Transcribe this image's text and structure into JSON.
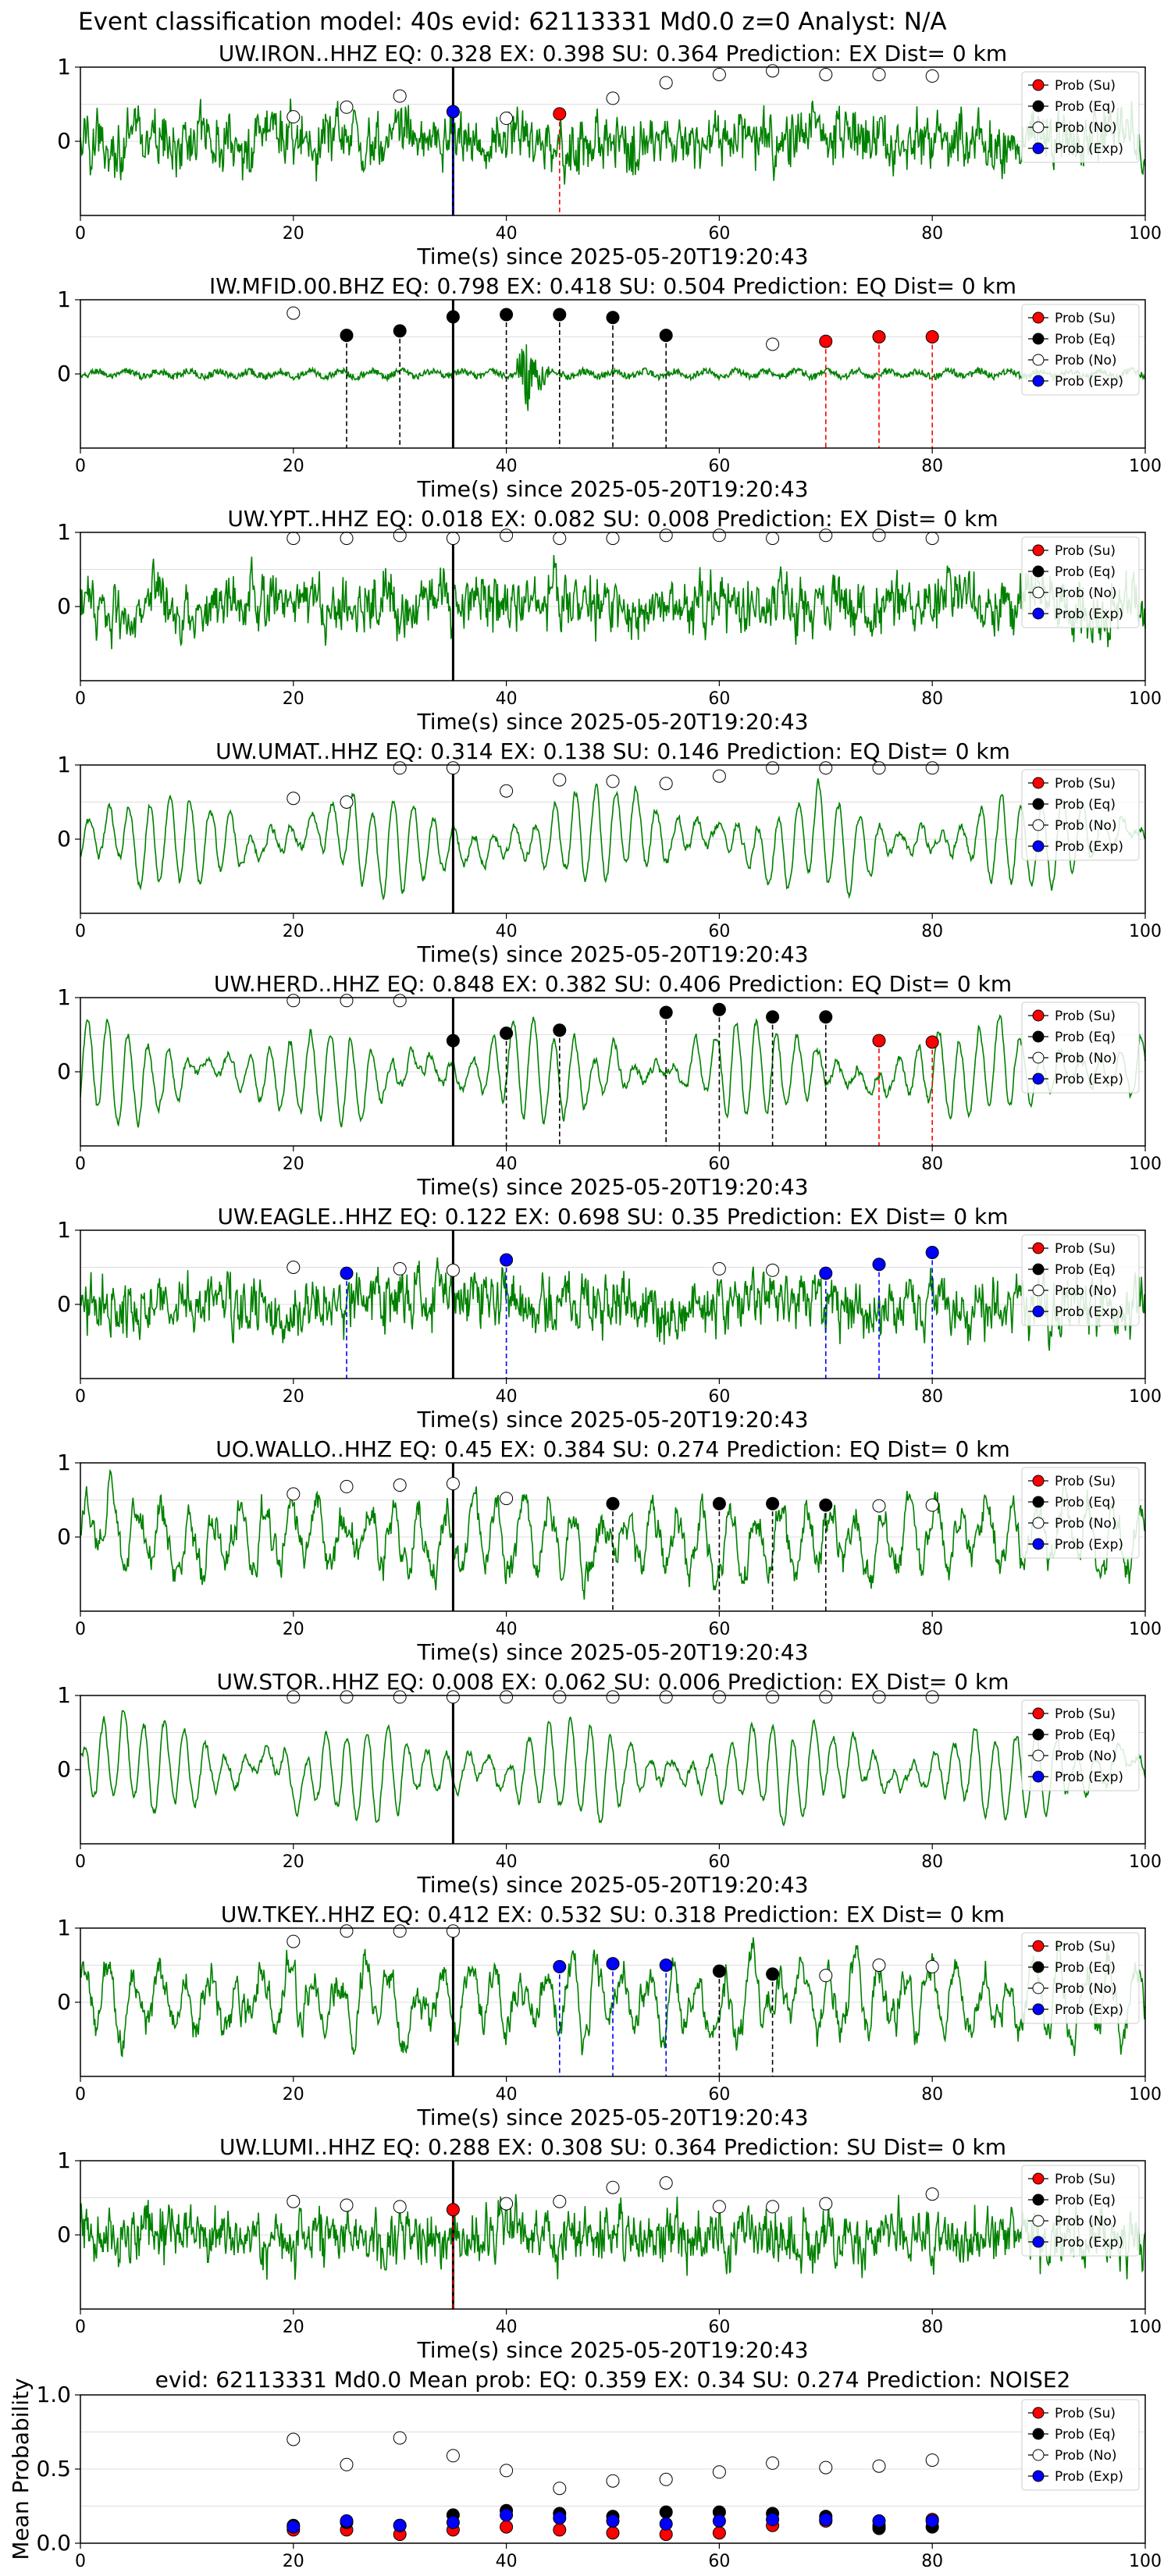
{
  "figure": {
    "suptitle": "Event classification model: 40s evid: 62113331 Md0.0 z=0 Analyst: N/A",
    "colors": {
      "waveform": "#008000",
      "su": "#ff0000",
      "eq": "#000000",
      "no": "#ffffff",
      "exp": "#0000ff",
      "pick": "#000000"
    },
    "legend_labels": [
      "Prob (Su)",
      "Prob (Eq)",
      "Prob (No)",
      "Prob (Exp)"
    ],
    "x_ticks": [
      0,
      20,
      40,
      60,
      80,
      100
    ]
  },
  "chart_data": [
    {
      "type": "line",
      "title": "UW.IRON..HHZ   EQ: 0.328  EX: 0.398  SU: 0.364   Prediction: EX    Dist= 0 km",
      "xlabel": "Time(s) since 2025-05-20T19:20:43",
      "xlim": [
        0,
        100
      ],
      "ylim": [
        -1,
        1
      ],
      "yticks": [
        0,
        1
      ],
      "pick_time": 35,
      "legend": "top-right",
      "prob_markers": [
        {
          "x": 20,
          "y": 0.33,
          "class": "no"
        },
        {
          "x": 25,
          "y": 0.46,
          "class": "no"
        },
        {
          "x": 30,
          "y": 0.61,
          "class": "no"
        },
        {
          "x": 35,
          "y": 0.4,
          "class": "exp"
        },
        {
          "x": 40,
          "y": 0.31,
          "class": "no"
        },
        {
          "x": 45,
          "y": 0.37,
          "class": "su"
        },
        {
          "x": 50,
          "y": 0.58,
          "class": "no"
        },
        {
          "x": 55,
          "y": 0.79,
          "class": "no"
        },
        {
          "x": 60,
          "y": 0.9,
          "class": "no"
        },
        {
          "x": 65,
          "y": 0.95,
          "class": "no"
        },
        {
          "x": 70,
          "y": 0.9,
          "class": "no"
        },
        {
          "x": 75,
          "y": 0.9,
          "class": "no"
        },
        {
          "x": 80,
          "y": 0.88,
          "class": "no"
        }
      ]
    },
    {
      "type": "line",
      "title": "IW.MFID.00.BHZ   EQ: 0.798  EX: 0.418  SU: 0.504   Prediction: EQ    Dist= 0 km",
      "xlabel": "Time(s) since 2025-05-20T19:20:43",
      "xlim": [
        0,
        100
      ],
      "ylim": [
        -1,
        1
      ],
      "yticks": [
        0,
        1
      ],
      "pick_time": 35,
      "legend": "top-right",
      "prob_markers": [
        {
          "x": 20,
          "y": 0.82,
          "class": "no"
        },
        {
          "x": 25,
          "y": 0.52,
          "class": "eq"
        },
        {
          "x": 30,
          "y": 0.58,
          "class": "eq"
        },
        {
          "x": 35,
          "y": 0.77,
          "class": "eq"
        },
        {
          "x": 40,
          "y": 0.8,
          "class": "eq"
        },
        {
          "x": 45,
          "y": 0.8,
          "class": "eq"
        },
        {
          "x": 50,
          "y": 0.76,
          "class": "eq"
        },
        {
          "x": 55,
          "y": 0.52,
          "class": "eq"
        },
        {
          "x": 65,
          "y": 0.4,
          "class": "no"
        },
        {
          "x": 70,
          "y": 0.44,
          "class": "su"
        },
        {
          "x": 75,
          "y": 0.5,
          "class": "su"
        },
        {
          "x": 80,
          "y": 0.5,
          "class": "su"
        }
      ]
    },
    {
      "type": "line",
      "title": "UW.YPT..HHZ   EQ: 0.018  EX: 0.082  SU: 0.008   Prediction: EX    Dist= 0 km",
      "xlabel": "Time(s) since 2025-05-20T19:20:43",
      "xlim": [
        0,
        100
      ],
      "ylim": [
        -1,
        1
      ],
      "yticks": [
        0,
        1
      ],
      "pick_time": 35,
      "legend": "top-right",
      "prob_markers": [
        {
          "x": 20,
          "y": 0.92,
          "class": "no"
        },
        {
          "x": 25,
          "y": 0.92,
          "class": "no"
        },
        {
          "x": 30,
          "y": 0.96,
          "class": "no"
        },
        {
          "x": 35,
          "y": 0.92,
          "class": "no"
        },
        {
          "x": 40,
          "y": 0.96,
          "class": "no"
        },
        {
          "x": 45,
          "y": 0.92,
          "class": "no"
        },
        {
          "x": 50,
          "y": 0.92,
          "class": "no"
        },
        {
          "x": 55,
          "y": 0.96,
          "class": "no"
        },
        {
          "x": 60,
          "y": 0.96,
          "class": "no"
        },
        {
          "x": 65,
          "y": 0.92,
          "class": "no"
        },
        {
          "x": 70,
          "y": 0.96,
          "class": "no"
        },
        {
          "x": 75,
          "y": 0.96,
          "class": "no"
        },
        {
          "x": 80,
          "y": 0.92,
          "class": "no"
        }
      ]
    },
    {
      "type": "line",
      "title": "UW.UMAT..HHZ   EQ: 0.314  EX: 0.138  SU: 0.146   Prediction: EQ    Dist= 0 km",
      "xlabel": "Time(s) since 2025-05-20T19:20:43",
      "xlim": [
        0,
        100
      ],
      "ylim": [
        -1,
        1
      ],
      "yticks": [
        0,
        1
      ],
      "pick_time": 35,
      "legend": "top-right",
      "prob_markers": [
        {
          "x": 20,
          "y": 0.55,
          "class": "no"
        },
        {
          "x": 25,
          "y": 0.5,
          "class": "no"
        },
        {
          "x": 30,
          "y": 0.96,
          "class": "no"
        },
        {
          "x": 35,
          "y": 0.96,
          "class": "no"
        },
        {
          "x": 40,
          "y": 0.65,
          "class": "no"
        },
        {
          "x": 45,
          "y": 0.8,
          "class": "no"
        },
        {
          "x": 50,
          "y": 0.78,
          "class": "no"
        },
        {
          "x": 55,
          "y": 0.75,
          "class": "no"
        },
        {
          "x": 60,
          "y": 0.85,
          "class": "no"
        },
        {
          "x": 65,
          "y": 0.96,
          "class": "no"
        },
        {
          "x": 70,
          "y": 0.96,
          "class": "no"
        },
        {
          "x": 75,
          "y": 0.96,
          "class": "no"
        },
        {
          "x": 80,
          "y": 0.96,
          "class": "no"
        }
      ]
    },
    {
      "type": "line",
      "title": "UW.HERD..HHZ   EQ: 0.848  EX: 0.382  SU: 0.406   Prediction: EQ    Dist= 0 km",
      "xlabel": "Time(s) since 2025-05-20T19:20:43",
      "xlim": [
        0,
        100
      ],
      "ylim": [
        -1,
        1
      ],
      "yticks": [
        0,
        1
      ],
      "pick_time": 35,
      "legend": "top-right",
      "prob_markers": [
        {
          "x": 20,
          "y": 0.96,
          "class": "no"
        },
        {
          "x": 25,
          "y": 0.96,
          "class": "no"
        },
        {
          "x": 30,
          "y": 0.96,
          "class": "no"
        },
        {
          "x": 35,
          "y": 0.42,
          "class": "eq"
        },
        {
          "x": 40,
          "y": 0.52,
          "class": "eq"
        },
        {
          "x": 45,
          "y": 0.56,
          "class": "eq"
        },
        {
          "x": 55,
          "y": 0.8,
          "class": "eq"
        },
        {
          "x": 60,
          "y": 0.84,
          "class": "eq"
        },
        {
          "x": 65,
          "y": 0.74,
          "class": "eq"
        },
        {
          "x": 70,
          "y": 0.74,
          "class": "eq"
        },
        {
          "x": 75,
          "y": 0.42,
          "class": "su"
        },
        {
          "x": 80,
          "y": 0.4,
          "class": "su"
        }
      ]
    },
    {
      "type": "line",
      "title": "UW.EAGLE..HHZ   EQ: 0.122  EX: 0.698  SU: 0.35   Prediction: EX    Dist= 0 km",
      "xlabel": "Time(s) since 2025-05-20T19:20:43",
      "xlim": [
        0,
        100
      ],
      "ylim": [
        -1,
        1
      ],
      "yticks": [
        0,
        1
      ],
      "pick_time": 35,
      "legend": "top-right",
      "prob_markers": [
        {
          "x": 20,
          "y": 0.5,
          "class": "no"
        },
        {
          "x": 25,
          "y": 0.42,
          "class": "exp"
        },
        {
          "x": 30,
          "y": 0.48,
          "class": "no"
        },
        {
          "x": 35,
          "y": 0.46,
          "class": "no"
        },
        {
          "x": 40,
          "y": 0.6,
          "class": "exp"
        },
        {
          "x": 60,
          "y": 0.48,
          "class": "no"
        },
        {
          "x": 65,
          "y": 0.46,
          "class": "no"
        },
        {
          "x": 70,
          "y": 0.42,
          "class": "exp"
        },
        {
          "x": 75,
          "y": 0.54,
          "class": "exp"
        },
        {
          "x": 80,
          "y": 0.7,
          "class": "exp"
        }
      ]
    },
    {
      "type": "line",
      "title": "UO.WALLO..HHZ   EQ: 0.45  EX: 0.384  SU: 0.274   Prediction: EQ    Dist= 0 km",
      "xlabel": "Time(s) since 2025-05-20T19:20:43",
      "xlim": [
        0,
        100
      ],
      "ylim": [
        -1,
        1
      ],
      "yticks": [
        0,
        1
      ],
      "pick_time": 35,
      "legend": "top-right",
      "prob_markers": [
        {
          "x": 20,
          "y": 0.58,
          "class": "no"
        },
        {
          "x": 25,
          "y": 0.68,
          "class": "no"
        },
        {
          "x": 30,
          "y": 0.7,
          "class": "no"
        },
        {
          "x": 35,
          "y": 0.72,
          "class": "no"
        },
        {
          "x": 40,
          "y": 0.52,
          "class": "no"
        },
        {
          "x": 50,
          "y": 0.45,
          "class": "eq"
        },
        {
          "x": 60,
          "y": 0.45,
          "class": "eq"
        },
        {
          "x": 65,
          "y": 0.45,
          "class": "eq"
        },
        {
          "x": 70,
          "y": 0.43,
          "class": "eq"
        },
        {
          "x": 75,
          "y": 0.42,
          "class": "no"
        },
        {
          "x": 80,
          "y": 0.43,
          "class": "no"
        }
      ]
    },
    {
      "type": "line",
      "title": "UW.STOR..HHZ   EQ: 0.008  EX: 0.062  SU: 0.006   Prediction: EX    Dist= 0 km",
      "xlabel": "Time(s) since 2025-05-20T19:20:43",
      "xlim": [
        0,
        100
      ],
      "ylim": [
        -1,
        1
      ],
      "yticks": [
        0,
        1
      ],
      "pick_time": 35,
      "legend": "top-right",
      "prob_markers": [
        {
          "x": 20,
          "y": 0.98,
          "class": "no"
        },
        {
          "x": 25,
          "y": 0.98,
          "class": "no"
        },
        {
          "x": 30,
          "y": 0.98,
          "class": "no"
        },
        {
          "x": 35,
          "y": 0.98,
          "class": "no"
        },
        {
          "x": 40,
          "y": 0.98,
          "class": "no"
        },
        {
          "x": 45,
          "y": 0.98,
          "class": "no"
        },
        {
          "x": 50,
          "y": 0.98,
          "class": "no"
        },
        {
          "x": 55,
          "y": 0.98,
          "class": "no"
        },
        {
          "x": 60,
          "y": 0.98,
          "class": "no"
        },
        {
          "x": 65,
          "y": 0.98,
          "class": "no"
        },
        {
          "x": 70,
          "y": 0.98,
          "class": "no"
        },
        {
          "x": 75,
          "y": 0.98,
          "class": "no"
        },
        {
          "x": 80,
          "y": 0.98,
          "class": "no"
        }
      ]
    },
    {
      "type": "line",
      "title": "UW.TKEY..HHZ   EQ: 0.412  EX: 0.532  SU: 0.318   Prediction: EX    Dist= 0 km",
      "xlabel": "Time(s) since 2025-05-20T19:20:43",
      "xlim": [
        0,
        100
      ],
      "ylim": [
        -1,
        1
      ],
      "yticks": [
        0,
        1
      ],
      "pick_time": 35,
      "legend": "top-right",
      "prob_markers": [
        {
          "x": 20,
          "y": 0.82,
          "class": "no"
        },
        {
          "x": 25,
          "y": 0.96,
          "class": "no"
        },
        {
          "x": 30,
          "y": 0.96,
          "class": "no"
        },
        {
          "x": 35,
          "y": 0.96,
          "class": "no"
        },
        {
          "x": 45,
          "y": 0.48,
          "class": "exp"
        },
        {
          "x": 50,
          "y": 0.52,
          "class": "exp"
        },
        {
          "x": 55,
          "y": 0.5,
          "class": "exp"
        },
        {
          "x": 60,
          "y": 0.42,
          "class": "eq"
        },
        {
          "x": 65,
          "y": 0.38,
          "class": "eq"
        },
        {
          "x": 70,
          "y": 0.36,
          "class": "no"
        },
        {
          "x": 75,
          "y": 0.5,
          "class": "no"
        },
        {
          "x": 80,
          "y": 0.48,
          "class": "no"
        }
      ]
    },
    {
      "type": "line",
      "title": "UW.LUMI..HHZ   EQ: 0.288  EX: 0.308  SU: 0.364   Prediction: SU    Dist= 0 km",
      "xlabel": "Time(s) since 2025-05-20T19:20:43",
      "xlim": [
        0,
        100
      ],
      "ylim": [
        -1,
        1
      ],
      "yticks": [
        0,
        1
      ],
      "pick_time": 35,
      "legend": "top-right",
      "prob_markers": [
        {
          "x": 20,
          "y": 0.45,
          "class": "no"
        },
        {
          "x": 25,
          "y": 0.4,
          "class": "no"
        },
        {
          "x": 30,
          "y": 0.38,
          "class": "no"
        },
        {
          "x": 35,
          "y": 0.34,
          "class": "su"
        },
        {
          "x": 40,
          "y": 0.42,
          "class": "no"
        },
        {
          "x": 45,
          "y": 0.45,
          "class": "no"
        },
        {
          "x": 50,
          "y": 0.64,
          "class": "no"
        },
        {
          "x": 55,
          "y": 0.7,
          "class": "no"
        },
        {
          "x": 60,
          "y": 0.38,
          "class": "no"
        },
        {
          "x": 65,
          "y": 0.38,
          "class": "no"
        },
        {
          "x": 70,
          "y": 0.42,
          "class": "no"
        },
        {
          "x": 80,
          "y": 0.55,
          "class": "no"
        }
      ]
    },
    {
      "type": "scatter",
      "title": "evid: 62113331  Md0.0   Mean prob:   EQ: 0.359  EX: 0.34  SU: 0.274   Prediction: NOISE2",
      "ylabel": "Mean Probability",
      "xlim": [
        0,
        100
      ],
      "ylim": [
        0,
        1
      ],
      "yticks": [
        0,
        0.5,
        1
      ],
      "legend": "top-right",
      "x": [
        20,
        25,
        30,
        35,
        40,
        45,
        50,
        55,
        60,
        65,
        70,
        75,
        80
      ],
      "series": [
        {
          "name": "Prob (Su)",
          "class": "su",
          "values": [
            0.09,
            0.09,
            0.06,
            0.09,
            0.11,
            0.09,
            0.07,
            0.06,
            0.07,
            0.12,
            0.15,
            0.12,
            0.16
          ]
        },
        {
          "name": "Prob (Eq)",
          "class": "eq",
          "values": [
            0.12,
            0.14,
            0.12,
            0.19,
            0.22,
            0.2,
            0.18,
            0.21,
            0.21,
            0.2,
            0.18,
            0.1,
            0.11
          ]
        },
        {
          "name": "Prob (No)",
          "class": "no",
          "values": [
            0.7,
            0.53,
            0.71,
            0.59,
            0.49,
            0.37,
            0.42,
            0.43,
            0.48,
            0.54,
            0.51,
            0.52,
            0.56
          ]
        },
        {
          "name": "Prob (Exp)",
          "class": "exp",
          "values": [
            0.11,
            0.15,
            0.12,
            0.14,
            0.19,
            0.17,
            0.15,
            0.13,
            0.15,
            0.16,
            0.16,
            0.15,
            0.15
          ]
        }
      ]
    }
  ]
}
